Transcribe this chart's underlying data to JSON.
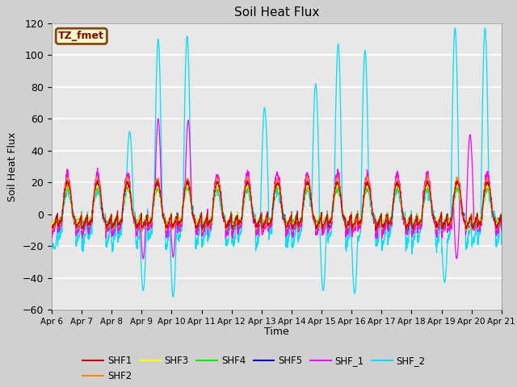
{
  "title": "Soil Heat Flux",
  "ylabel": "Soil Heat Flux",
  "xlabel": "Time",
  "ylim": [
    -60,
    120
  ],
  "fig_bg": "#d0d0d0",
  "plot_bg": "#e8e8e8",
  "annotation_text": "TZ_fmet",
  "annotation_bg": "#ffffcc",
  "annotation_border": "#8B4513",
  "annotation_text_color": "#8B0000",
  "colors": {
    "SHF1": "#cc0000",
    "SHF2": "#ff8800",
    "SHF3": "#ffff00",
    "SHF4": "#00ee00",
    "SHF5": "#0000cc",
    "SHF_1": "#ff00ff",
    "SHF_2": "#00ddff"
  },
  "n_days": 15,
  "start_day": 6,
  "yticks": [
    -60,
    -40,
    -20,
    0,
    20,
    40,
    60,
    80,
    100,
    120
  ],
  "grid_color": "#ffffff",
  "legend_bg": "#ffffff"
}
